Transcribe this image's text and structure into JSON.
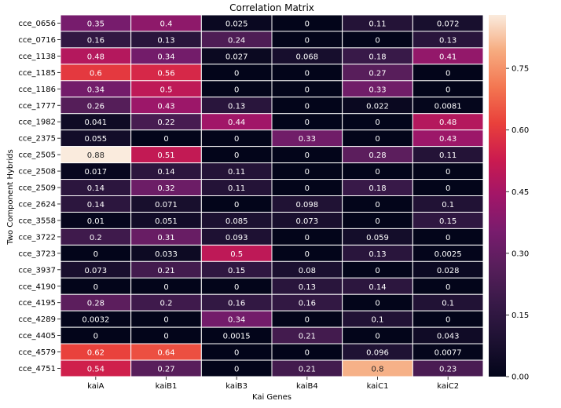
{
  "chart_data": {
    "type": "heatmap",
    "title": "Correlation Matrix",
    "xlabel": "Kai Genes",
    "ylabel": "Two Component Hybrids",
    "x_categories": [
      "kaiA",
      "kaiB1",
      "kaiB3",
      "kaiB4",
      "kaiC1",
      "kaiC2"
    ],
    "y_categories": [
      "cce_0656",
      "cce_0716",
      "cce_1138",
      "cce_1185",
      "cce_1186",
      "cce_1777",
      "cce_1982",
      "cce_2375",
      "cce_2505",
      "cce_2508",
      "cce_2509",
      "cce_2624",
      "cce_3558",
      "cce_3722",
      "cce_3723",
      "cce_3937",
      "cce_4190",
      "cce_4195",
      "cce_4289",
      "cce_4405",
      "cce_4579",
      "cce_4751"
    ],
    "values": [
      [
        0.35,
        0.4,
        0.025,
        0,
        0.11,
        0.072
      ],
      [
        0.16,
        0.13,
        0.24,
        0,
        0,
        0.13
      ],
      [
        0.48,
        0.34,
        0.027,
        0.068,
        0.18,
        0.41
      ],
      [
        0.6,
        0.56,
        0,
        0,
        0.27,
        0
      ],
      [
        0.34,
        0.5,
        0,
        0,
        0.33,
        0
      ],
      [
        0.26,
        0.43,
        0.13,
        0,
        0.022,
        0.0081
      ],
      [
        0.041,
        0.22,
        0.44,
        0,
        0,
        0.48
      ],
      [
        0.055,
        0,
        0,
        0.33,
        0,
        0.43
      ],
      [
        0.88,
        0.51,
        0,
        0,
        0.28,
        0.11
      ],
      [
        0.017,
        0.14,
        0.11,
        0,
        0,
        0
      ],
      [
        0.14,
        0.32,
        0.11,
        0,
        0.18,
        0
      ],
      [
        0.14,
        0.071,
        0,
        0.098,
        0,
        0.1
      ],
      [
        0.01,
        0.051,
        0.085,
        0.073,
        0,
        0.15
      ],
      [
        0.2,
        0.31,
        0.093,
        0,
        0.059,
        0
      ],
      [
        0,
        0.033,
        0.5,
        0,
        0.13,
        0.0025
      ],
      [
        0.073,
        0.21,
        0.15,
        0.08,
        0,
        0.028
      ],
      [
        0,
        0,
        0,
        0.13,
        0.14,
        0
      ],
      [
        0.28,
        0.2,
        0.16,
        0.16,
        0,
        0.1
      ],
      [
        0.0032,
        0,
        0.34,
        0,
        0.1,
        0
      ],
      [
        0,
        0,
        0.0015,
        0.21,
        0,
        0.043
      ],
      [
        0.62,
        0.64,
        0,
        0,
        0.096,
        0.0077
      ],
      [
        0.54,
        0.27,
        0,
        0.21,
        0.8,
        0.23
      ]
    ],
    "colorbar": {
      "range": [
        0,
        0.88
      ],
      "ticks": [
        0.0,
        0.15,
        0.3,
        0.45,
        0.6,
        0.75
      ],
      "tick_labels": [
        "0.00",
        "0.15",
        "0.30",
        "0.45",
        "0.60",
        "0.75"
      ]
    },
    "colormap": "rocket",
    "annotations": true,
    "grid": false
  }
}
